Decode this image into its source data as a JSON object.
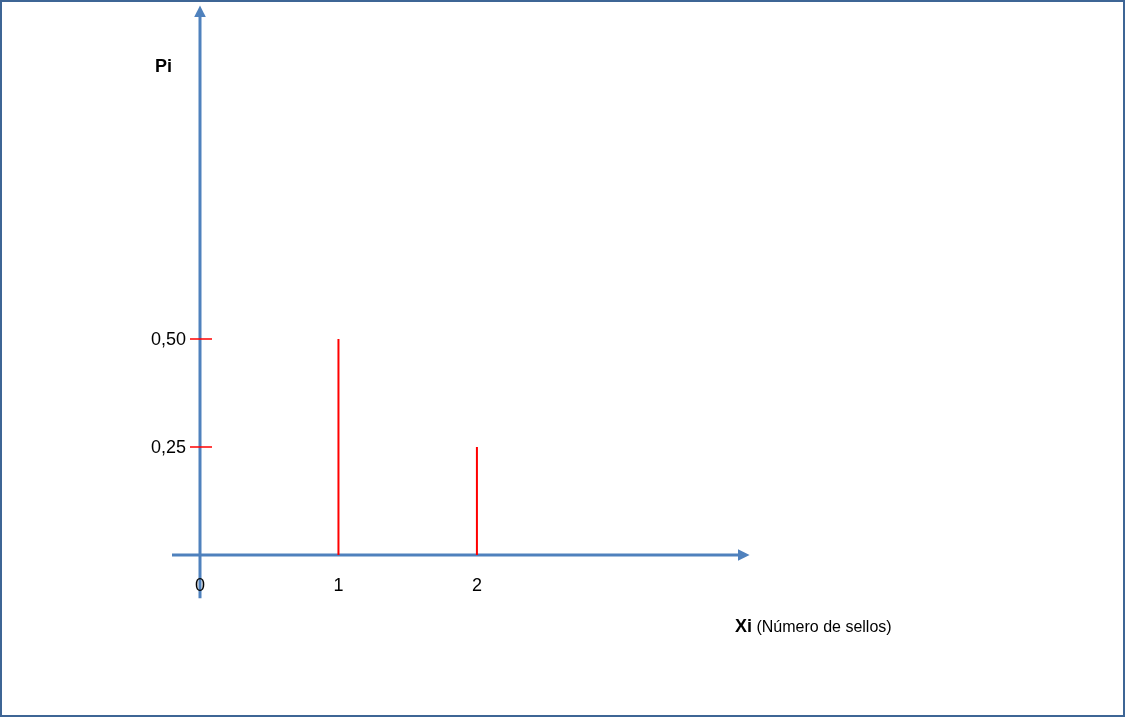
{
  "chart_data": {
    "type": "bar",
    "x": [
      1,
      2
    ],
    "values": [
      0.5,
      0.25
    ],
    "color": "#ff0000",
    "xlim": [
      0,
      3.9
    ],
    "xticks": [
      0,
      1,
      2
    ],
    "ylim": [
      -0.1,
      1.25
    ],
    "yticks": [
      {
        "value": 0.25,
        "label": "0,25"
      },
      {
        "value": 0.5,
        "label": "0,50"
      }
    ],
    "ylabel": "Pi",
    "xlabel": "Xi (Número de sellos)",
    "grid": false
  }
}
